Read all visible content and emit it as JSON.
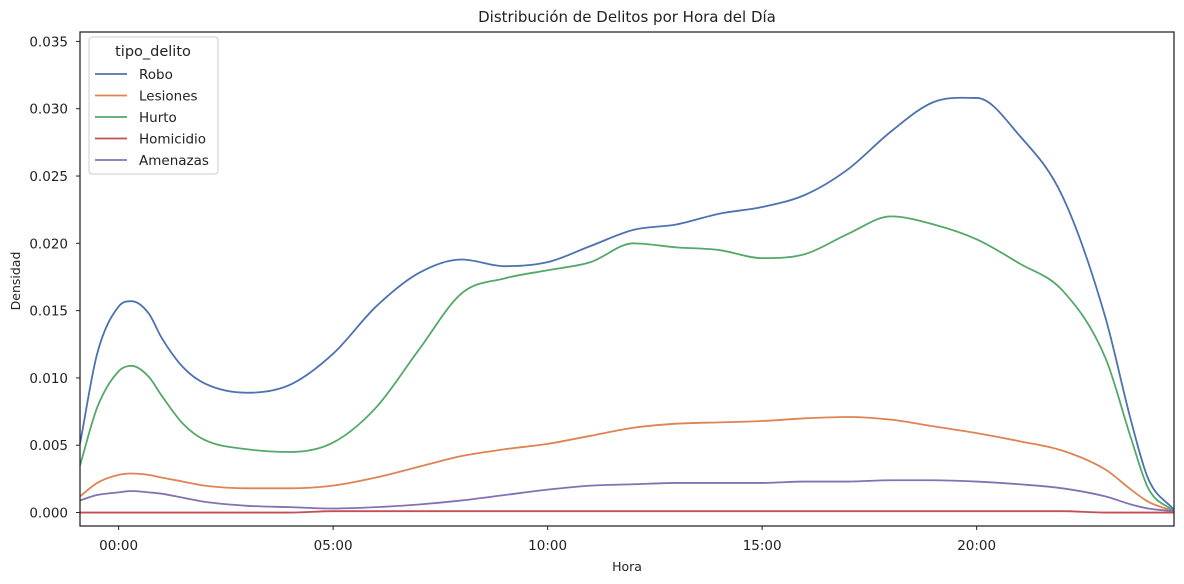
{
  "chart_data": {
    "type": "line",
    "title": "Distribución de Delitos por Hora del Día",
    "xlabel": "Hora",
    "ylabel": "Densidad",
    "xlim": [
      -0.9,
      24.6
    ],
    "ylim": [
      -0.001,
      0.0357
    ],
    "x_ticks": [
      0,
      5,
      10,
      15,
      20
    ],
    "x_tick_labels": [
      "00:00",
      "05:00",
      "10:00",
      "15:00",
      "20:00"
    ],
    "y_ticks": [
      0,
      0.005,
      0.01,
      0.015,
      0.02,
      0.025,
      0.03,
      0.035
    ],
    "y_tick_labels": [
      "0.000",
      "0.005",
      "0.010",
      "0.015",
      "0.020",
      "0.025",
      "0.030",
      "0.035"
    ],
    "grid": false,
    "legend": {
      "title": "tipo_delito",
      "placement": "upper-left"
    },
    "x": [
      -0.9,
      -0.5,
      0,
      0.3,
      0.7,
      1,
      1.5,
      2,
      3,
      4,
      5,
      6,
      7,
      8,
      9,
      10,
      11,
      12,
      13,
      14,
      15,
      16,
      17,
      18,
      19,
      20,
      21,
      22,
      23,
      23.6,
      24,
      24.6
    ],
    "series": [
      {
        "name": "Robo",
        "color": "#4c72b0",
        "values": [
          0.0051,
          0.0118,
          0.0153,
          0.0157,
          0.0148,
          0.013,
          0.0108,
          0.0096,
          0.0089,
          0.0095,
          0.0118,
          0.0153,
          0.0178,
          0.0188,
          0.0183,
          0.0186,
          0.0198,
          0.021,
          0.0214,
          0.0222,
          0.0227,
          0.0236,
          0.0255,
          0.0283,
          0.0305,
          0.0308,
          0.028,
          0.0235,
          0.0145,
          0.0068,
          0.0025,
          0.0002
        ]
      },
      {
        "name": "Lesiones",
        "color": "#dd8452",
        "values": [
          0.0012,
          0.0022,
          0.0028,
          0.0029,
          0.0028,
          0.0026,
          0.0023,
          0.002,
          0.0018,
          0.0018,
          0.002,
          0.0026,
          0.0034,
          0.0042,
          0.0047,
          0.0051,
          0.0057,
          0.0063,
          0.0066,
          0.0067,
          0.0068,
          0.007,
          0.0071,
          0.0069,
          0.0064,
          0.0059,
          0.0053,
          0.0046,
          0.0032,
          0.0017,
          0.0008,
          0.0001
        ]
      },
      {
        "name": "Hurto",
        "color": "#55a868",
        "values": [
          0.0035,
          0.0078,
          0.0105,
          0.0109,
          0.0101,
          0.0087,
          0.0066,
          0.0054,
          0.0047,
          0.0045,
          0.0052,
          0.0078,
          0.0121,
          0.0163,
          0.0174,
          0.018,
          0.0186,
          0.02,
          0.0197,
          0.0195,
          0.0189,
          0.0192,
          0.0207,
          0.022,
          0.0214,
          0.0203,
          0.0185,
          0.0165,
          0.0115,
          0.0055,
          0.0018,
          0.0001
        ]
      },
      {
        "name": "Homicidio",
        "color": "#c44e52",
        "values": [
          0.0,
          0.0,
          0.0,
          0.0,
          0.0,
          0.0,
          0.0,
          0.0,
          0.0,
          0.0,
          0.0001,
          0.0001,
          0.0001,
          0.0001,
          0.0001,
          0.0001,
          0.0001,
          0.0001,
          0.0001,
          0.0001,
          0.0001,
          0.0001,
          0.0001,
          0.0001,
          0.0001,
          0.0001,
          0.0001,
          0.0001,
          0.0,
          0.0,
          0.0,
          0.0
        ]
      },
      {
        "name": "Amenazas",
        "color": "#8172b3",
        "values": [
          0.0009,
          0.0013,
          0.0015,
          0.0016,
          0.0015,
          0.0014,
          0.0011,
          0.0008,
          0.0005,
          0.0004,
          0.0003,
          0.0004,
          0.0006,
          0.0009,
          0.0013,
          0.0017,
          0.002,
          0.0021,
          0.0022,
          0.0022,
          0.0022,
          0.0023,
          0.0023,
          0.0024,
          0.0024,
          0.0023,
          0.0021,
          0.0018,
          0.0012,
          0.0006,
          0.0003,
          0.0001
        ]
      }
    ]
  }
}
